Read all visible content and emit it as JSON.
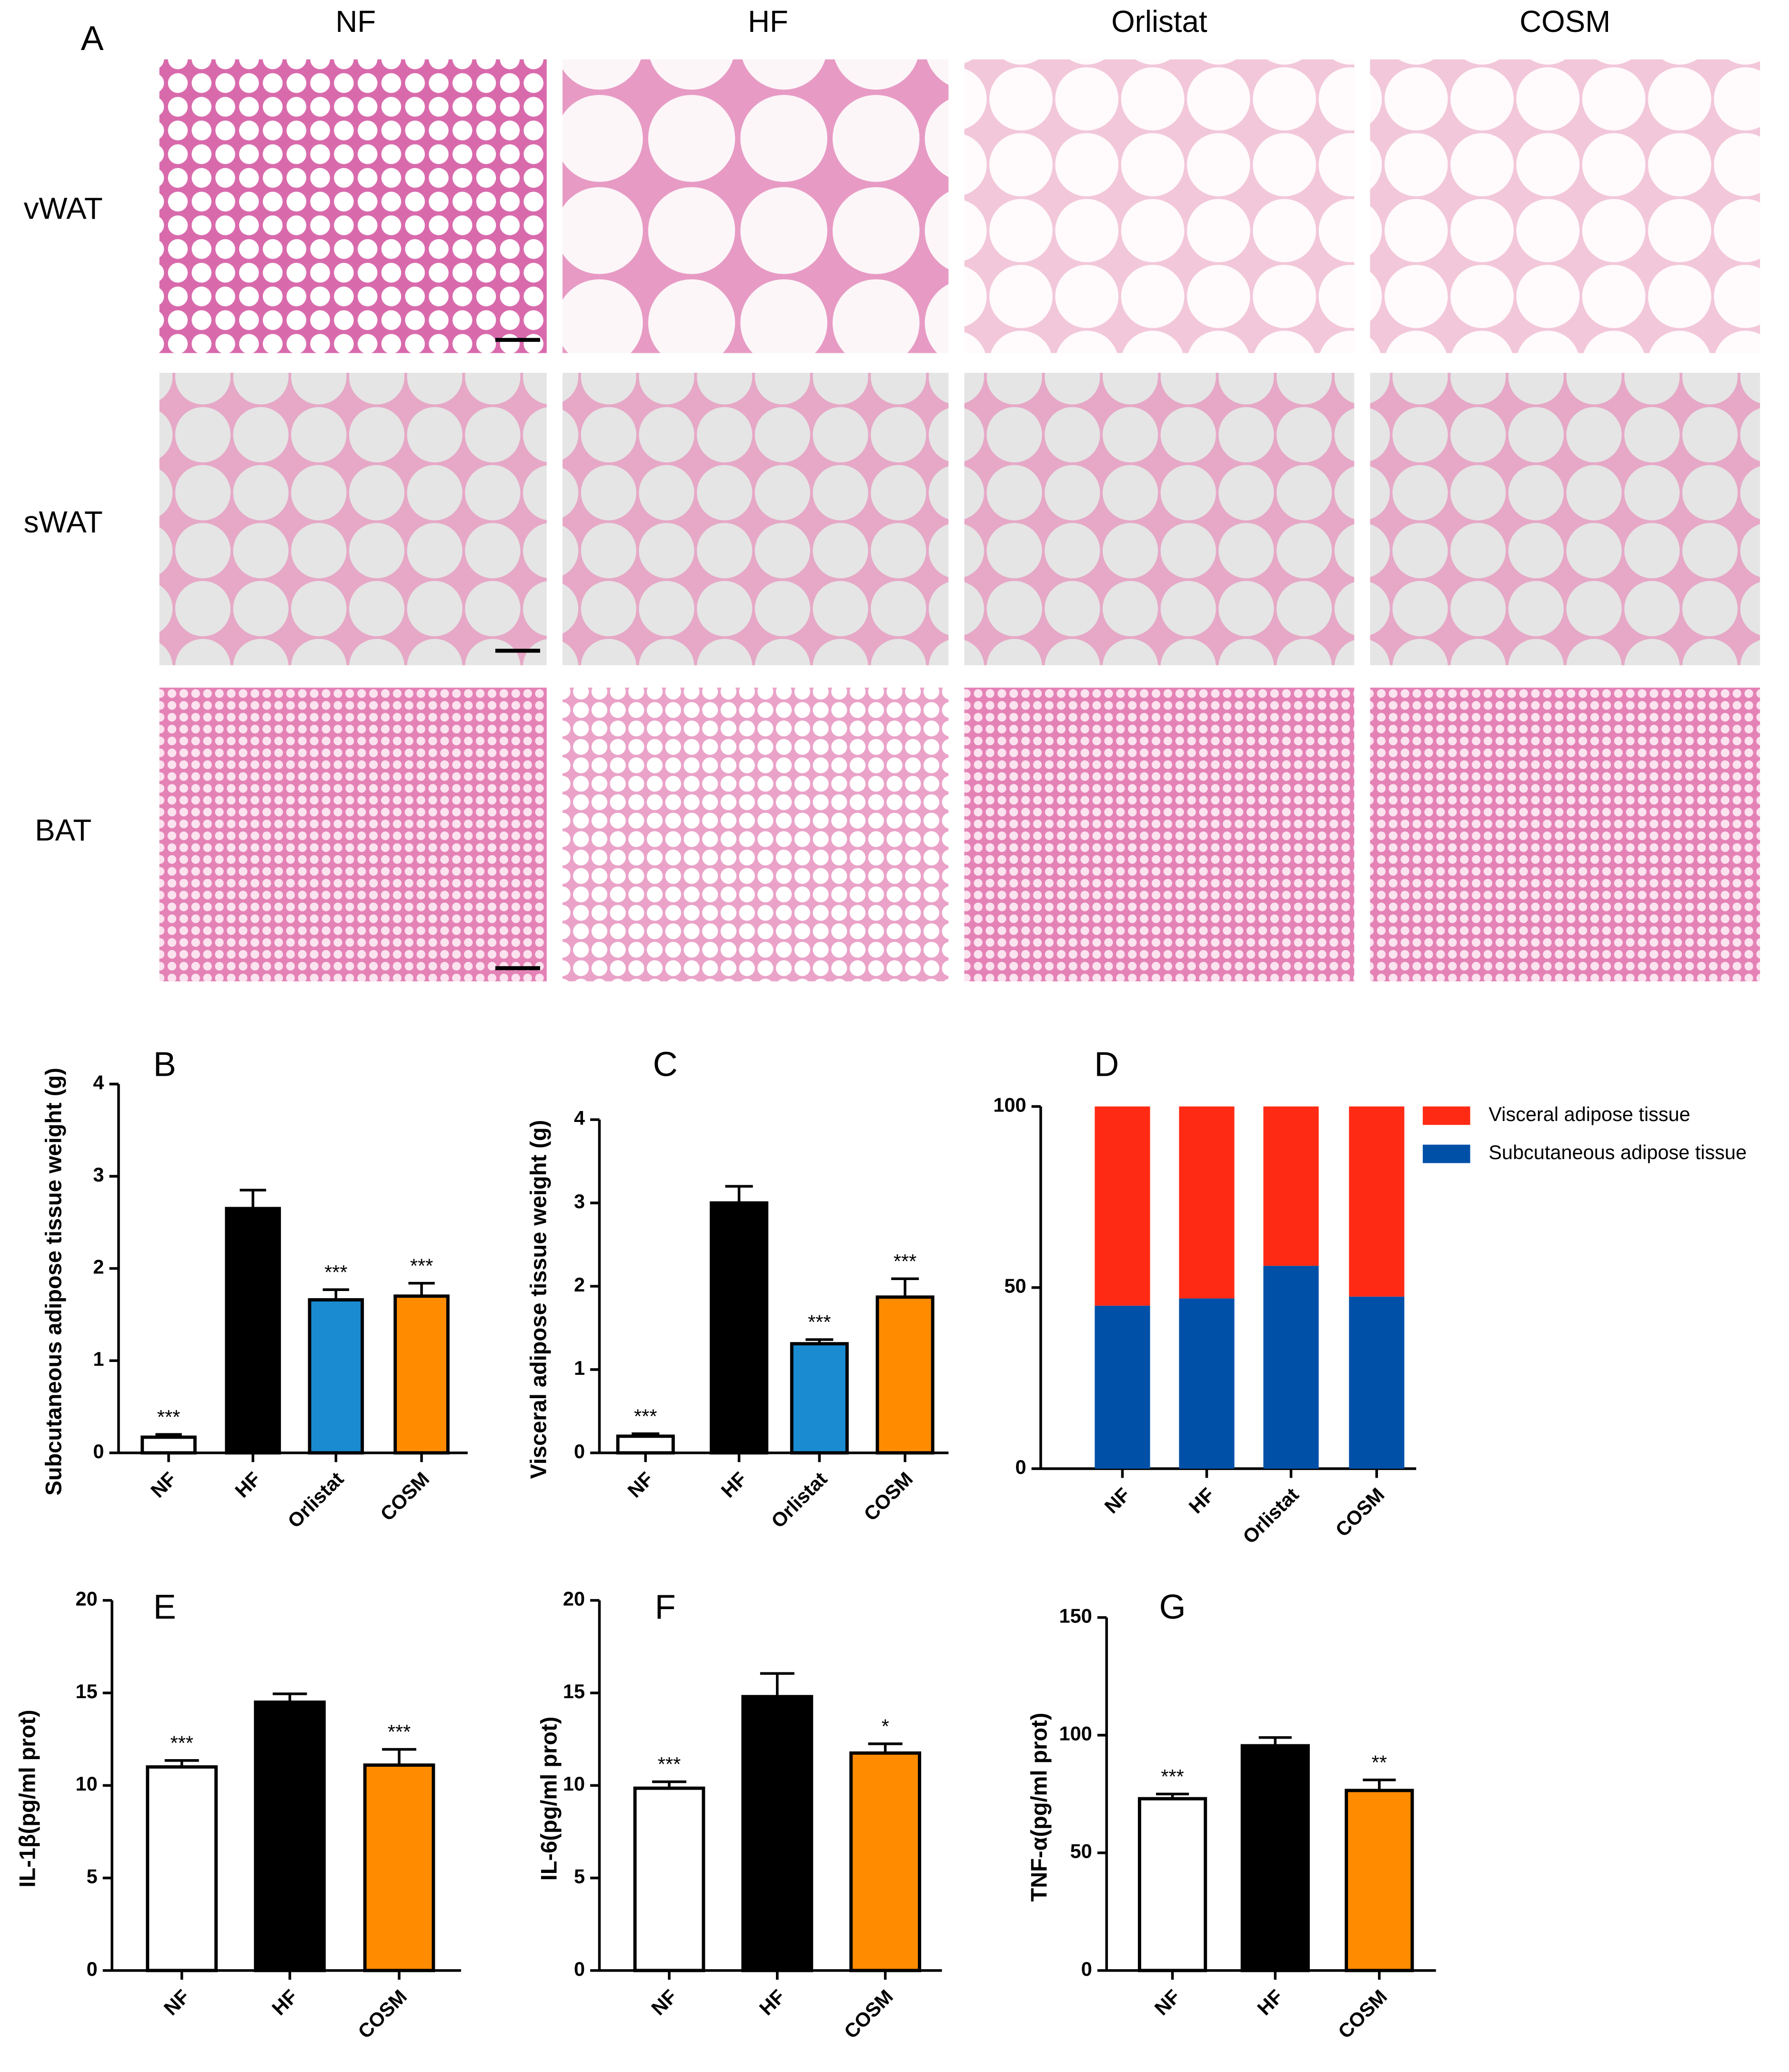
{
  "panel_a": {
    "label": "A",
    "columns": [
      "NF",
      "HF",
      "Orlistat",
      "COSM"
    ],
    "rows": [
      "vWAT",
      "sWAT",
      "BAT"
    ]
  },
  "chart_data": [
    {
      "type": "bar",
      "label": "B",
      "ylabel": "Subcutaneous adipose tissue weight (g)",
      "categories": [
        "NF",
        "HF",
        "Orlistat",
        "COSM"
      ],
      "values": [
        0.17,
        2.65,
        1.66,
        1.7
      ],
      "errors": [
        0.03,
        0.2,
        0.11,
        0.14
      ],
      "colors": [
        "#ffffff",
        "#000000",
        "#1a8bd0",
        "#ff8c00"
      ],
      "annotations": [
        "***",
        null,
        "***",
        "***"
      ],
      "ylim": [
        0,
        4
      ],
      "yticks": [
        0,
        1,
        2,
        3,
        4
      ]
    },
    {
      "type": "bar",
      "label": "C",
      "ylabel": "Visceral adipose tissue weight (g)",
      "categories": [
        "NF",
        "HF",
        "Orlistat",
        "COSM"
      ],
      "values": [
        0.2,
        3.0,
        1.31,
        1.87
      ],
      "errors": [
        0.03,
        0.2,
        0.05,
        0.22
      ],
      "colors": [
        "#ffffff",
        "#000000",
        "#1a8bd0",
        "#ff8c00"
      ],
      "annotations": [
        "***",
        null,
        "***",
        "***"
      ],
      "ylim": [
        0,
        4
      ],
      "yticks": [
        0,
        1,
        2,
        3,
        4
      ]
    },
    {
      "type": "stacked_bar",
      "label": "D",
      "categories": [
        "NF",
        "HF",
        "Orlistat",
        "COSM"
      ],
      "series": [
        {
          "name": "Subcutaneous adipose tissue",
          "color": "#0050a8",
          "values": [
            45,
            47,
            56,
            47.5
          ]
        },
        {
          "name": "Visceral adipose tissue",
          "color": "#ff2a14",
          "values": [
            55,
            53,
            44,
            52.5
          ]
        }
      ],
      "ylim": [
        0,
        100
      ],
      "yticks": [
        0,
        50,
        100
      ],
      "legend": "top-right"
    },
    {
      "type": "bar",
      "label": "E",
      "ylabel": "IL-1β(pg/ml prot)",
      "categories": [
        "NF",
        "HF",
        "COSM"
      ],
      "values": [
        11.0,
        14.5,
        11.1
      ],
      "errors": [
        0.35,
        0.45,
        0.85
      ],
      "colors": [
        "#ffffff",
        "#000000",
        "#ff8c00"
      ],
      "annotations": [
        "***",
        null,
        "***"
      ],
      "ylim": [
        0,
        20
      ],
      "yticks": [
        0,
        5,
        10,
        15,
        20
      ]
    },
    {
      "type": "bar",
      "label": "F",
      "ylabel": "IL-6(pg/ml prot)",
      "categories": [
        "NF",
        "HF",
        "COSM"
      ],
      "values": [
        9.85,
        14.8,
        11.75
      ],
      "errors": [
        0.35,
        1.25,
        0.5
      ],
      "colors": [
        "#ffffff",
        "#000000",
        "#ff8c00"
      ],
      "annotations": [
        "***",
        null,
        "*"
      ],
      "ylim": [
        0,
        20
      ],
      "yticks": [
        0,
        5,
        10,
        15,
        20
      ]
    },
    {
      "type": "bar",
      "label": "G",
      "ylabel": "TNF-α(pg/ml prot)",
      "categories": [
        "NF",
        "HF",
        "COSM"
      ],
      "values": [
        73,
        95.5,
        76.5
      ],
      "errors": [
        2,
        3.5,
        4.5
      ],
      "colors": [
        "#ffffff",
        "#000000",
        "#ff8c00"
      ],
      "annotations": [
        "***",
        null,
        "**"
      ],
      "ylim": [
        0,
        150
      ],
      "yticks": [
        0,
        50,
        100,
        150
      ]
    }
  ]
}
